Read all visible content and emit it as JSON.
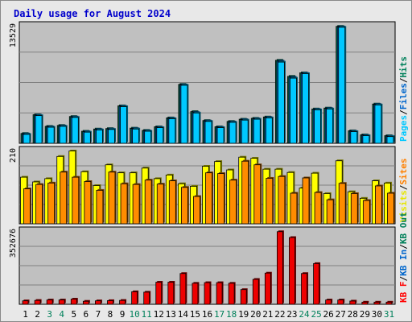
{
  "chart_data": {
    "type": "bar",
    "title": "Daily usage for August 2024",
    "days": [
      "1",
      "2",
      "3",
      "4",
      "5",
      "6",
      "7",
      "8",
      "9",
      "10",
      "11",
      "12",
      "13",
      "14",
      "15",
      "16",
      "17",
      "18",
      "19",
      "20",
      "21",
      "22",
      "23",
      "24",
      "25",
      "26",
      "27",
      "28",
      "29",
      "30",
      "31"
    ],
    "weekend_days": [
      "3",
      "4",
      "10",
      "11",
      "17",
      "18",
      "24",
      "25",
      "31"
    ],
    "panels": [
      {
        "id": "hits-files-pages",
        "ymax": 13529,
        "ymax_label": "13529",
        "legend": [
          {
            "text": "Pages",
            "color": "#00c8ff"
          },
          {
            "text": "/",
            "color": "#000000"
          },
          {
            "text": "Files",
            "color": "#0066cc"
          },
          {
            "text": "/",
            "color": "#000000"
          },
          {
            "text": "Hits",
            "color": "#00805a"
          }
        ],
        "series": [
          {
            "name": "Hits",
            "color": "#00805a",
            "values": [
              1100,
              3200,
              1900,
              2000,
              3000,
              1350,
              1600,
              1650,
              4200,
              1700,
              1450,
              1850,
              2850,
              6600,
              3550,
              2550,
              1850,
              2450,
              2700,
              2800,
              2950,
              9300,
              7500,
              7900,
              3850,
              3950,
              13100,
              1400,
              950,
              4400,
              850
            ]
          },
          {
            "name": "Files",
            "color": "#0066cc",
            "values": [
              1050,
              3150,
              1850,
              1950,
              2950,
              1300,
              1550,
              1600,
              4150,
              1650,
              1400,
              1800,
              2800,
              6550,
              3450,
              2500,
              1800,
              2400,
              2650,
              2750,
              2900,
              9200,
              7400,
              7850,
              3800,
              3900,
              13050,
              1350,
              900,
              4350,
              800
            ]
          },
          {
            "name": "Pages",
            "color": "#00c8ff",
            "values": [
              1000,
              3100,
              1800,
              1900,
              2900,
              1250,
              1500,
              1550,
              4100,
              1600,
              1350,
              1750,
              2750,
              6500,
              3400,
              2450,
              1750,
              2350,
              2600,
              2700,
              2850,
              9100,
              7300,
              7800,
              3750,
              3850,
              13000,
              1300,
              850,
              4300,
              750
            ]
          }
        ]
      },
      {
        "id": "visits-sites",
        "ymax": 210,
        "ymax_label": "210",
        "legend": [
          {
            "text": "Visits",
            "color": "#e6e600"
          },
          {
            "text": "/",
            "color": "#000000"
          },
          {
            "text": "Sites",
            "color": "#ff8000"
          }
        ],
        "series": [
          {
            "name": "Visits",
            "color": "#ffff00",
            "values": [
              128,
              115,
              124,
              185,
              200,
              143,
              105,
              162,
              140,
              140,
              153,
              124,
              134,
              110,
              103,
              158,
              171,
              148,
              183,
              180,
              150,
              150,
              141,
              98,
              139,
              83,
              173,
              88,
              70,
              118,
              112
            ]
          },
          {
            "name": "Sites",
            "color": "#ff8c00",
            "values": [
              96,
              108,
              112,
              142,
              128,
              116,
              92,
              142,
              110,
              108,
              120,
              109,
              118,
              100,
              75,
              140,
              138,
              120,
              172,
              162,
              125,
              130,
              84,
              126,
              86,
              66,
              111,
              83,
              64,
              104,
              84
            ]
          }
        ]
      },
      {
        "id": "kb",
        "ymax": 352676,
        "ymax_label": "352676",
        "legend": [
          {
            "text": "KB F",
            "color": "#ff0000"
          },
          {
            "text": "/",
            "color": "#000000"
          },
          {
            "text": "KB In",
            "color": "#0066cc"
          },
          {
            "text": "/",
            "color": "#000000"
          },
          {
            "text": "KB Out",
            "color": "#00805a"
          }
        ],
        "series": [
          {
            "name": "KB F",
            "color": "#ee0000",
            "values": [
              16000,
              18000,
              20000,
              20000,
              24000,
              14000,
              16000,
              17000,
              18000,
              58000,
              56000,
              102000,
              102000,
              142000,
              97000,
              100000,
              100000,
              97000,
              68000,
              115000,
              144000,
              335000,
              308000,
              142000,
              188000,
              20000,
              20000,
              15000,
              10000,
              10000,
              10000
            ]
          }
        ]
      }
    ]
  }
}
